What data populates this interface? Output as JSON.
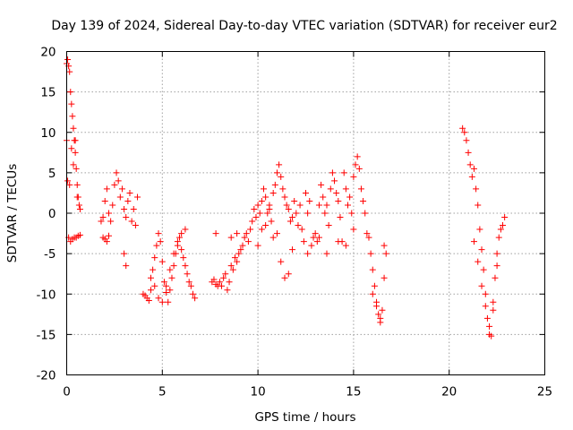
{
  "chart_data": {
    "type": "scatter",
    "title": "Day 139 of 2024, Sidereal Day-to-day VTEC variation (SDTVAR) for receiver eur2",
    "xlabel": "GPS time / hours",
    "ylabel": "SDTVAR / TECUs",
    "xlim": [
      0,
      25
    ],
    "ylim": [
      -20,
      20
    ],
    "xticks": [
      0,
      5,
      10,
      15,
      20,
      25
    ],
    "yticks": [
      -20,
      -15,
      -10,
      -5,
      0,
      5,
      10,
      15,
      20
    ],
    "xtick_labels": [
      "0",
      "5",
      "10",
      "15",
      "20",
      "25"
    ],
    "ytick_labels": [
      "-20",
      "-15",
      "-10",
      "-5",
      "0",
      "5",
      "10",
      "15",
      "20"
    ],
    "grid": true,
    "marker": "+",
    "marker_color": "#ff0000",
    "series": [
      {
        "name": "eur2",
        "x": [
          0.0,
          0.05,
          0.1,
          0.15,
          0.2,
          0.25,
          0.3,
          0.35,
          0.4,
          0.45,
          0.5,
          0.55,
          0.6,
          0.65,
          0.7,
          0.05,
          0.15,
          0.25,
          0.35,
          0.45,
          0.55,
          0.0,
          0.1,
          0.2,
          0.3,
          0.4,
          0.5,
          0.6,
          0.7,
          1.8,
          1.9,
          2.0,
          2.1,
          2.2,
          2.3,
          2.4,
          2.5,
          2.6,
          2.7,
          2.8,
          2.9,
          3.0,
          3.1,
          3.2,
          3.3,
          3.4,
          3.5,
          3.6,
          3.7,
          1.9,
          2.0,
          2.1,
          2.2,
          3.0,
          3.1,
          4.0,
          4.1,
          4.2,
          4.3,
          4.4,
          4.5,
          4.6,
          4.7,
          4.8,
          4.9,
          5.0,
          5.1,
          5.2,
          5.3,
          5.4,
          5.5,
          5.6,
          5.7,
          5.8,
          5.9,
          6.0,
          6.1,
          6.2,
          6.3,
          6.4,
          6.5,
          6.6,
          6.7,
          4.4,
          4.6,
          4.8,
          5.0,
          5.2,
          5.4,
          5.6,
          5.8,
          6.0,
          6.2,
          7.6,
          7.7,
          7.8,
          7.9,
          8.0,
          8.1,
          8.2,
          8.3,
          8.4,
          8.5,
          8.6,
          8.7,
          8.8,
          8.9,
          9.0,
          9.1,
          9.2,
          7.8,
          8.6,
          8.9,
          9.3,
          9.4,
          9.5,
          9.6,
          9.7,
          9.8,
          9.9,
          10.0,
          10.1,
          10.2,
          10.3,
          10.4,
          10.5,
          10.6,
          10.7,
          10.8,
          10.9,
          11.0,
          11.1,
          11.2,
          11.3,
          11.4,
          11.5,
          11.6,
          11.7,
          11.8,
          11.9,
          12.0,
          10.0,
          10.2,
          10.4,
          10.6,
          10.8,
          11.0,
          11.2,
          11.4,
          11.6,
          11.8,
          12.1,
          12.2,
          12.3,
          12.4,
          12.5,
          12.6,
          12.7,
          12.8,
          12.9,
          13.0,
          13.1,
          13.2,
          13.3,
          13.4,
          13.5,
          13.6,
          13.7,
          13.8,
          13.9,
          14.0,
          14.1,
          14.2,
          14.3,
          14.4,
          14.5,
          14.6,
          14.7,
          14.8,
          14.9,
          15.0,
          15.1,
          15.2,
          15.3,
          15.4,
          15.5,
          15.6,
          15.7,
          12.6,
          13.2,
          13.6,
          14.2,
          14.6,
          15.0,
          15.8,
          15.9,
          16.0,
          16.1,
          16.2,
          16.3,
          16.4,
          16.5,
          16.6,
          16.7,
          16.0,
          16.2,
          16.4,
          16.6,
          20.7,
          20.8,
          20.9,
          21.0,
          21.1,
          21.2,
          21.3,
          21.4,
          21.5,
          21.6,
          21.7,
          21.8,
          21.9,
          22.0,
          22.1,
          22.2,
          22.3,
          22.4,
          22.5,
          22.6,
          22.7,
          22.8,
          22.9,
          21.3,
          21.5,
          21.7,
          21.9,
          22.1,
          22.3,
          22.5
        ],
        "y": [
          18.5,
          19.0,
          18.2,
          17.5,
          15.0,
          13.5,
          12.0,
          10.5,
          9.0,
          7.5,
          5.5,
          3.5,
          2.0,
          1.0,
          0.5,
          4.0,
          3.5,
          8.0,
          6.0,
          9.0,
          2.0,
          9.0,
          -3.0,
          -3.5,
          -3.2,
          -3.0,
          -3.0,
          -2.8,
          -2.7,
          -1.0,
          -0.5,
          1.5,
          3.0,
          0.0,
          -1.0,
          1.0,
          3.5,
          5.0,
          4.0,
          2.0,
          3.0,
          0.5,
          -0.5,
          1.5,
          2.5,
          -1.0,
          0.5,
          -1.5,
          2.0,
          -3.0,
          -3.2,
          -3.5,
          -2.8,
          -5.0,
          -6.5,
          -10.0,
          -10.2,
          -10.5,
          -10.8,
          -9.5,
          -7.0,
          -5.5,
          -4.0,
          -2.5,
          -3.5,
          -6.0,
          -8.5,
          -9.8,
          -11.0,
          -9.5,
          -8.0,
          -6.5,
          -5.0,
          -4.0,
          -3.0,
          -4.5,
          -5.5,
          -6.5,
          -7.5,
          -8.5,
          -9.0,
          -10.0,
          -10.5,
          -8.0,
          -9.0,
          -10.5,
          -11.0,
          -9.0,
          -7.0,
          -5.0,
          -3.5,
          -2.5,
          -2.0,
          -8.5,
          -8.2,
          -8.8,
          -9.0,
          -8.5,
          -9.0,
          -8.0,
          -7.5,
          -9.5,
          -8.5,
          -6.5,
          -7.0,
          -5.5,
          -6.0,
          -5.0,
          -4.5,
          -4.0,
          -2.5,
          -3.0,
          -2.5,
          -3.0,
          -2.5,
          -3.5,
          -2.0,
          -1.0,
          0.5,
          -0.5,
          1.0,
          0.0,
          1.5,
          3.0,
          2.0,
          0.0,
          1.0,
          -1.0,
          2.5,
          3.5,
          5.0,
          6.0,
          4.5,
          3.0,
          2.0,
          1.0,
          0.5,
          -1.0,
          -0.5,
          1.5,
          0.0,
          -4.0,
          -2.0,
          -1.5,
          0.5,
          -3.0,
          -2.5,
          -6.0,
          -8.0,
          -7.5,
          -4.5,
          -1.5,
          1.0,
          -2.0,
          -3.5,
          2.5,
          0.0,
          1.5,
          -4.0,
          -3.0,
          -2.5,
          -3.5,
          1.0,
          3.5,
          2.0,
          0.0,
          1.0,
          -1.5,
          3.0,
          5.0,
          4.0,
          2.5,
          1.5,
          -0.5,
          -3.5,
          5.0,
          3.0,
          1.0,
          2.0,
          0.0,
          4.5,
          6.0,
          7.0,
          5.5,
          3.0,
          1.5,
          0.0,
          -2.5,
          -5.0,
          -3.0,
          -5.0,
          -3.5,
          -4.0,
          -2.0,
          -3.0,
          -5.0,
          -7.0,
          -9.0,
          -11.0,
          -12.5,
          -13.0,
          -12.0,
          -8.0,
          -5.0,
          -10.0,
          -11.5,
          -13.5,
          -4.0,
          10.5,
          10.0,
          9.0,
          7.5,
          6.0,
          4.5,
          5.5,
          3.0,
          1.0,
          -2.0,
          -4.5,
          -7.0,
          -10.0,
          -13.0,
          -15.0,
          -15.2,
          -12.0,
          -8.0,
          -5.0,
          -3.0,
          -2.0,
          -1.5,
          -0.5,
          -3.5,
          -6.0,
          -9.0,
          -11.5,
          -14.0,
          -11.0,
          -6.5
        ]
      }
    ]
  }
}
